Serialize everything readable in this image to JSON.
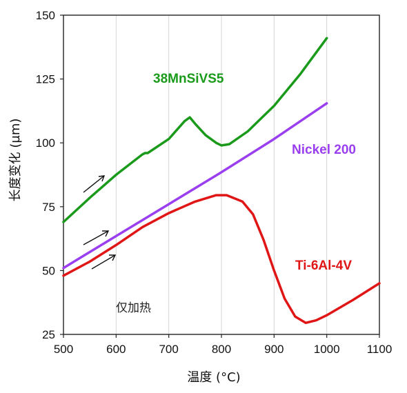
{
  "chart_data": {
    "type": "line",
    "title": "",
    "xlabel": "温度 (°C)",
    "ylabel": "长度变化 (µm)",
    "xlim": [
      500,
      1100
    ],
    "ylim": [
      25,
      150
    ],
    "xticks": [
      500,
      600,
      700,
      800,
      900,
      1000,
      1100
    ],
    "yticks": [
      25,
      50,
      75,
      100,
      125,
      150
    ],
    "grid": "vertical",
    "annotation": "仅加热",
    "series": [
      {
        "name": "38MnSiVS5",
        "color": "#1a9a1a",
        "points": [
          [
            500,
            69
          ],
          [
            550,
            78.5
          ],
          [
            600,
            87.5
          ],
          [
            650,
            95.5
          ],
          [
            655,
            96
          ],
          [
            660,
            96
          ],
          [
            700,
            101.5
          ],
          [
            730,
            108.5
          ],
          [
            740,
            110
          ],
          [
            750,
            107.5
          ],
          [
            770,
            103
          ],
          [
            790,
            100
          ],
          [
            800,
            99
          ],
          [
            815,
            99.5
          ],
          [
            850,
            104.5
          ],
          [
            900,
            114.5
          ],
          [
            950,
            127
          ],
          [
            1000,
            141
          ]
        ]
      },
      {
        "name": "Nickel 200",
        "color": "#9a3ff0",
        "points": [
          [
            500,
            51
          ],
          [
            600,
            63.5
          ],
          [
            700,
            76
          ],
          [
            800,
            88.5
          ],
          [
            900,
            101.5
          ],
          [
            1000,
            115.5
          ]
        ]
      },
      {
        "name": "Ti-6Al-4V",
        "color": "#e01515",
        "points": [
          [
            500,
            48
          ],
          [
            550,
            53.5
          ],
          [
            600,
            60
          ],
          [
            650,
            67
          ],
          [
            700,
            72.5
          ],
          [
            750,
            77
          ],
          [
            790,
            79.5
          ],
          [
            810,
            79.5
          ],
          [
            840,
            77
          ],
          [
            860,
            72
          ],
          [
            880,
            62
          ],
          [
            900,
            50
          ],
          [
            920,
            39
          ],
          [
            940,
            32
          ],
          [
            960,
            29.5
          ],
          [
            980,
            30.5
          ],
          [
            1000,
            32.5
          ],
          [
            1050,
            38.5
          ],
          [
            1100,
            45
          ]
        ]
      }
    ]
  }
}
